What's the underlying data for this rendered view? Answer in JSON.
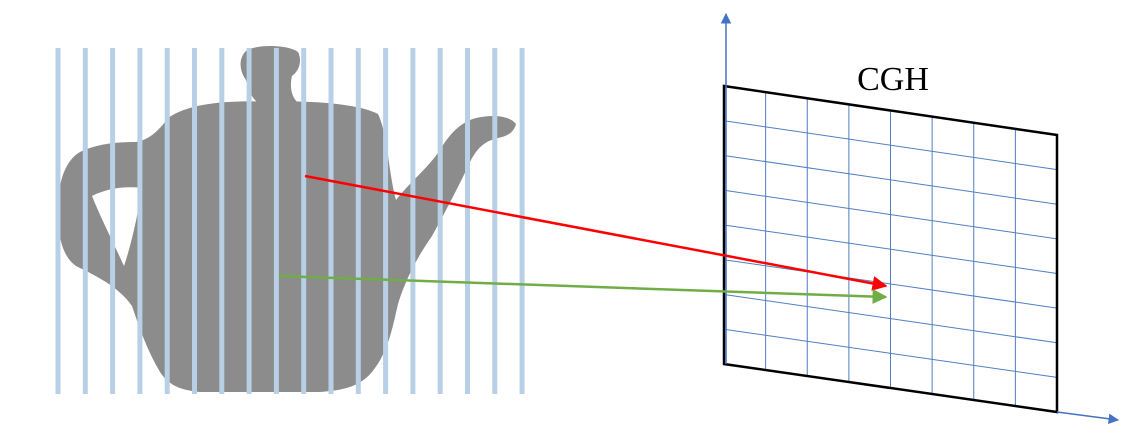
{
  "diagram": {
    "hologram_label": "CGH",
    "colors": {
      "teapot": "#8c8c8c",
      "slice_lines": "#b8d0e6",
      "grid_lines": "#4f7fc2",
      "plane_border": "#000000",
      "axis": "#4472c4",
      "ray_top": "#ff0000",
      "ray_bottom": "#70ad47"
    },
    "slice_count": 18,
    "grid": {
      "columns": 8,
      "rows": 8
    },
    "icons": {
      "object": "teapot-silhouette",
      "axis_arrow": "triangle-arrowhead"
    }
  }
}
